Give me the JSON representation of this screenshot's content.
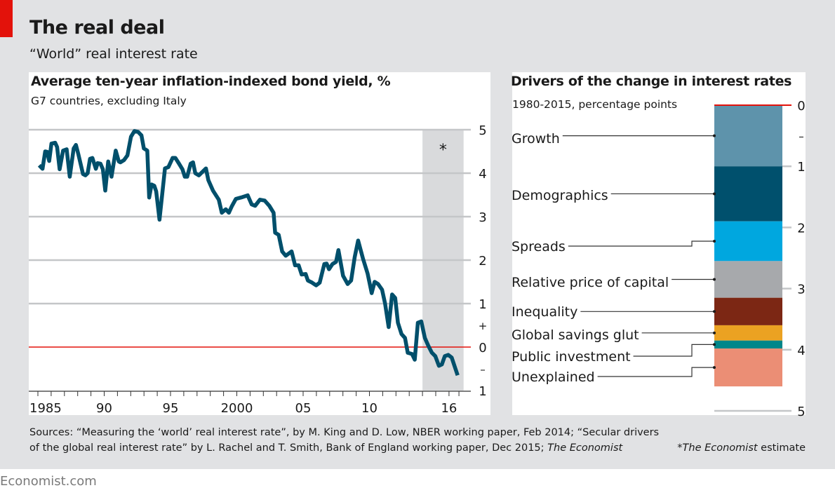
{
  "header": {
    "title": "The real deal",
    "subtitle": "“World” real interest rate"
  },
  "colors": {
    "brand_red": "#e3120b",
    "line": "#004f6b",
    "zero_line": "#e3120b",
    "gridline": "#c4c6c8",
    "estimate_shade": "#d9dadc",
    "background": "#e1e2e4"
  },
  "chart_data": [
    {
      "type": "line",
      "title": "Average ten-year inflation-indexed bond yield, %",
      "subtitle": "G7 countries, excluding Italy",
      "xlabel": "",
      "ylabel": "",
      "xlim": [
        1985,
        2016.75
      ],
      "ylim": [
        -1,
        5
      ],
      "grid": true,
      "x_tick_labels": [
        {
          "x": 1985,
          "label": "1985"
        },
        {
          "x": 1990,
          "label": "90"
        },
        {
          "x": 1995,
          "label": "95"
        },
        {
          "x": 2000,
          "label": "2000"
        },
        {
          "x": 2005,
          "label": "05"
        },
        {
          "x": 2010,
          "label": "10"
        },
        {
          "x": 2016,
          "label": "16"
        }
      ],
      "y_ticks": [
        {
          "value": 5,
          "label": "5"
        },
        {
          "value": 4,
          "label": "4"
        },
        {
          "value": 3,
          "label": "3"
        },
        {
          "value": 2,
          "label": "2"
        },
        {
          "value": 1,
          "label": "1"
        },
        {
          "value": 0,
          "label": "0"
        },
        {
          "value": -1,
          "label": "1"
        }
      ],
      "sign_markers": {
        "positive": "+",
        "negative": "–"
      },
      "reference_line": {
        "value": 0,
        "color": "#e3120b"
      },
      "estimate_region": {
        "from": 2014.0,
        "to": 2017.1,
        "annotation": "*"
      },
      "series": [
        {
          "name": "World real interest rate",
          "points": [
            [
              1985.1,
              4.18
            ],
            [
              1985.35,
              4.1
            ],
            [
              1985.55,
              4.5
            ],
            [
              1985.7,
              4.49
            ],
            [
              1985.85,
              4.28
            ],
            [
              1986.02,
              4.68
            ],
            [
              1986.3,
              4.7
            ],
            [
              1986.45,
              4.6
            ],
            [
              1986.64,
              4.09
            ],
            [
              1986.9,
              4.52
            ],
            [
              1987.17,
              4.55
            ],
            [
              1987.4,
              3.92
            ],
            [
              1987.7,
              4.57
            ],
            [
              1987.87,
              4.65
            ],
            [
              1988.05,
              4.44
            ],
            [
              1988.4,
              3.98
            ],
            [
              1988.58,
              3.95
            ],
            [
              1988.75,
              4.0
            ],
            [
              1988.93,
              4.33
            ],
            [
              1989.11,
              4.35
            ],
            [
              1989.37,
              4.1
            ],
            [
              1989.51,
              4.23
            ],
            [
              1989.72,
              4.22
            ],
            [
              1989.9,
              4.09
            ],
            [
              1990.08,
              3.6
            ],
            [
              1990.3,
              4.27
            ],
            [
              1990.55,
              3.92
            ],
            [
              1990.87,
              4.52
            ],
            [
              1991.1,
              4.27
            ],
            [
              1991.22,
              4.25
            ],
            [
              1991.49,
              4.3
            ],
            [
              1991.75,
              4.41
            ],
            [
              1992.02,
              4.84
            ],
            [
              1992.28,
              4.97
            ],
            [
              1992.55,
              4.95
            ],
            [
              1992.81,
              4.87
            ],
            [
              1992.99,
              4.57
            ],
            [
              1993.25,
              4.52
            ],
            [
              1993.39,
              3.44
            ],
            [
              1993.57,
              3.74
            ],
            [
              1993.78,
              3.71
            ],
            [
              1993.92,
              3.58
            ],
            [
              1994.17,
              2.93
            ],
            [
              1994.58,
              4.11
            ],
            [
              1994.84,
              4.14
            ],
            [
              1995.16,
              4.35
            ],
            [
              1995.37,
              4.35
            ],
            [
              1995.64,
              4.22
            ],
            [
              1995.9,
              4.09
            ],
            [
              1996.08,
              3.92
            ],
            [
              1996.26,
              3.92
            ],
            [
              1996.52,
              4.22
            ],
            [
              1996.7,
              4.25
            ],
            [
              1996.87,
              4.0
            ],
            [
              1997.14,
              3.95
            ],
            [
              1997.67,
              4.11
            ],
            [
              1997.85,
              3.84
            ],
            [
              1998.2,
              3.6
            ],
            [
              1998.64,
              3.39
            ],
            [
              1998.87,
              3.09
            ],
            [
              1999.17,
              3.17
            ],
            [
              1999.4,
              3.09
            ],
            [
              1999.61,
              3.23
            ],
            [
              1999.93,
              3.41
            ],
            [
              2000.32,
              3.44
            ],
            [
              2000.82,
              3.49
            ],
            [
              2001.12,
              3.28
            ],
            [
              2001.38,
              3.25
            ],
            [
              2001.74,
              3.39
            ],
            [
              2002.1,
              3.37
            ],
            [
              2002.45,
              3.25
            ],
            [
              2002.77,
              3.09
            ],
            [
              2002.89,
              2.63
            ],
            [
              2003.16,
              2.58
            ],
            [
              2003.42,
              2.2
            ],
            [
              2003.69,
              2.1
            ],
            [
              2004.13,
              2.2
            ],
            [
              2004.39,
              1.88
            ],
            [
              2004.66,
              1.88
            ],
            [
              2004.89,
              1.67
            ],
            [
              2005.19,
              1.68
            ],
            [
              2005.36,
              1.53
            ],
            [
              2005.63,
              1.49
            ],
            [
              2005.98,
              1.42
            ],
            [
              2006.25,
              1.48
            ],
            [
              2006.6,
              1.91
            ],
            [
              2006.77,
              1.92
            ],
            [
              2006.95,
              1.79
            ],
            [
              2007.21,
              1.91
            ],
            [
              2007.48,
              1.96
            ],
            [
              2007.66,
              2.23
            ],
            [
              2008.01,
              1.64
            ],
            [
              2008.36,
              1.45
            ],
            [
              2008.62,
              1.53
            ],
            [
              2008.89,
              2.07
            ],
            [
              2009.15,
              2.45
            ],
            [
              2009.51,
              2.04
            ],
            [
              2009.86,
              1.69
            ],
            [
              2010.17,
              1.24
            ],
            [
              2010.39,
              1.5
            ],
            [
              2010.65,
              1.45
            ],
            [
              2010.95,
              1.32
            ],
            [
              2011.18,
              1.0
            ],
            [
              2011.45,
              0.46
            ],
            [
              2011.71,
              1.21
            ],
            [
              2011.94,
              1.13
            ],
            [
              2012.15,
              0.56
            ],
            [
              2012.42,
              0.3
            ],
            [
              2012.68,
              0.21
            ],
            [
              2012.89,
              -0.13
            ],
            [
              2013.21,
              -0.16
            ],
            [
              2013.42,
              -0.29
            ],
            [
              2013.65,
              0.56
            ],
            [
              2013.91,
              0.59
            ],
            [
              2014.18,
              0.21
            ],
            [
              2014.44,
              0.03
            ],
            [
              2014.71,
              -0.13
            ],
            [
              2014.97,
              -0.21
            ],
            [
              2015.24,
              -0.43
            ],
            [
              2015.46,
              -0.4
            ],
            [
              2015.68,
              -0.21
            ],
            [
              2015.94,
              -0.18
            ],
            [
              2016.2,
              -0.24
            ],
            [
              2016.65,
              -0.65
            ]
          ]
        }
      ]
    },
    {
      "type": "bar",
      "subtype": "stacked-waterfall",
      "title": "Drivers of the change in interest rates",
      "subtitle": "1980-2015, percentage points",
      "ylim": [
        0,
        5
      ],
      "y_direction": "down",
      "y_ticks": [
        {
          "value": 0,
          "label": "0"
        },
        {
          "value": 1,
          "label": "1"
        },
        {
          "value": 2,
          "label": "2"
        },
        {
          "value": 3,
          "label": "3"
        },
        {
          "value": 4,
          "label": "4"
        },
        {
          "value": 5,
          "label": "5"
        }
      ],
      "sign_marker": "–",
      "reference_line": {
        "value": 0,
        "color": "#e3120b"
      },
      "categories": [
        "Growth",
        "Demographics",
        "Spreads",
        "Relative price of capital",
        "Inequality",
        "Global savings glut",
        "Public investment",
        "Unexplained"
      ],
      "series": [
        {
          "name": "Growth",
          "value": 1.0,
          "color": "#5e93ab"
        },
        {
          "name": "Demographics",
          "value": 0.9,
          "color": "#00506d"
        },
        {
          "name": "Spreads",
          "value": 0.65,
          "color": "#00a7df"
        },
        {
          "name": "Relative price of capital",
          "value": 0.6,
          "color": "#a7a9ac"
        },
        {
          "name": "Inequality",
          "value": 0.45,
          "color": "#7c2714"
        },
        {
          "name": "Global savings glut",
          "value": 0.25,
          "color": "#eba222"
        },
        {
          "name": "Public investment",
          "value": 0.13,
          "color": "#00878a"
        },
        {
          "name": "Unexplained",
          "value": 0.62,
          "color": "#eb8e75"
        }
      ]
    }
  ],
  "footer": {
    "sources_line1": "Sources: “Measuring the ‘world’ real interest rate”, by M. King and D. Low, NBER working paper, Feb 2014; “Secular drivers",
    "sources_line2_prefix": "of the global real interest rate” by L. Rachel and T. Smith, Bank of England working paper, Dec 2015; ",
    "sources_line2_italic": "The Economist",
    "footnote_star": "*",
    "footnote_italic": "The Economist",
    "footnote_suffix": " estimate",
    "brand": "Economist.com"
  }
}
